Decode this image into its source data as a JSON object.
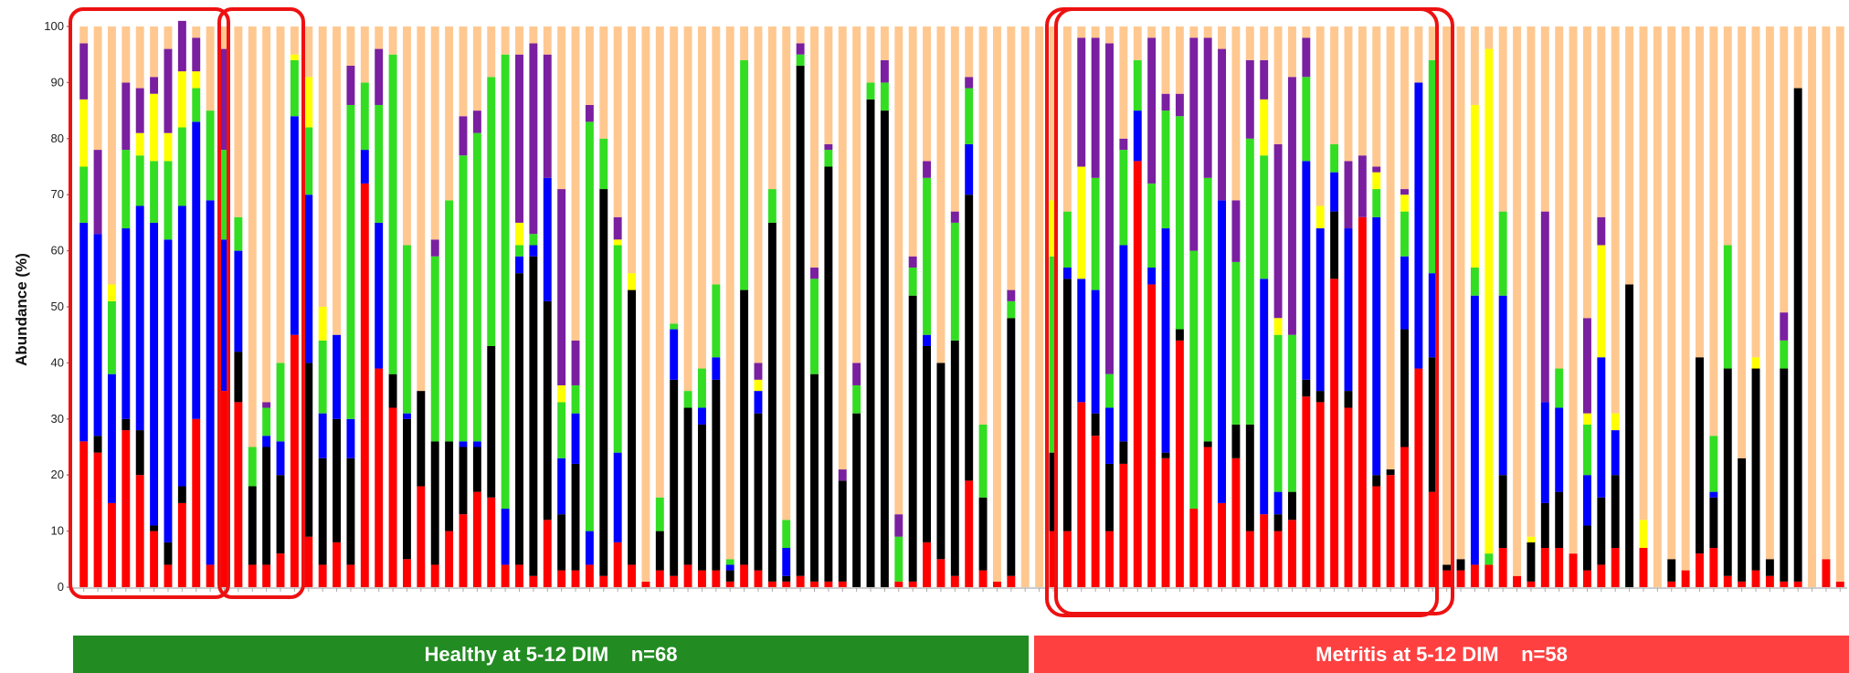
{
  "chart_data": {
    "type": "bar",
    "stacked": true,
    "ylabel": "Abundance (%)",
    "ylim": [
      0,
      100
    ],
    "yticks": [
      0,
      10,
      20,
      30,
      40,
      50,
      60,
      70,
      80,
      90,
      100
    ],
    "grid": false,
    "legend": "none",
    "series_colors": {
      "red": "#ff0000",
      "black": "#000000",
      "blue": "#0000ff",
      "green": "#33dd22",
      "yellow": "#ffff00",
      "purple": "#7a1fa0",
      "gray": "#e6e6e6",
      "other": "#ffc890"
    },
    "series_order": [
      "red",
      "black",
      "blue",
      "green",
      "yellow",
      "purple",
      "gray",
      "other"
    ],
    "groups": [
      {
        "label": "Healthy at 5-12 DIM    n=68",
        "color": "#228b22"
      },
      {
        "label": "Metritis at 5-12 DIM    n=58",
        "color": "#ff4040"
      }
    ],
    "healthy_bars": [
      [
        26,
        0,
        39,
        10,
        12,
        10,
        0
      ],
      [
        24,
        3,
        36,
        0,
        0,
        15,
        0
      ],
      [
        15,
        0,
        23,
        13,
        3,
        0,
        0
      ],
      [
        28,
        2,
        34,
        14,
        0,
        12,
        0
      ],
      [
        20,
        8,
        40,
        9,
        4,
        8,
        0
      ],
      [
        10,
        1,
        54,
        11,
        12,
        3,
        0
      ],
      [
        4,
        4,
        54,
        14,
        5,
        15,
        0
      ],
      [
        15,
        3,
        50,
        14,
        10,
        9,
        0
      ],
      [
        30,
        0,
        53,
        6,
        3,
        6,
        0
      ],
      [
        4,
        0,
        65,
        16,
        0,
        0,
        0
      ],
      [
        35,
        0,
        27,
        16,
        0,
        18,
        0
      ],
      [
        33,
        9,
        18,
        6,
        0,
        0,
        0
      ],
      [
        4,
        14,
        0,
        7,
        0,
        0,
        0
      ],
      [
        4,
        21,
        2,
        5,
        0,
        1,
        0
      ],
      [
        6,
        14,
        6,
        14,
        0,
        0,
        0
      ],
      [
        45,
        0,
        39,
        10,
        1,
        0,
        0
      ],
      [
        9,
        31,
        30,
        12,
        9,
        0,
        0
      ],
      [
        4,
        19,
        8,
        13,
        6,
        0,
        0
      ],
      [
        8,
        22,
        15,
        0,
        0,
        0,
        0
      ],
      [
        4,
        19,
        7,
        56,
        0,
        7,
        0
      ],
      [
        72,
        0,
        6,
        12,
        0,
        0,
        0
      ],
      [
        39,
        0,
        26,
        21,
        0,
        10,
        0
      ],
      [
        32,
        6,
        0,
        57,
        0,
        0,
        0
      ],
      [
        5,
        25,
        1,
        30,
        0,
        0,
        0
      ],
      [
        18,
        17,
        0,
        0,
        0,
        0,
        0
      ],
      [
        4,
        22,
        0,
        33,
        0,
        3,
        0
      ],
      [
        10,
        16,
        0,
        43,
        0,
        0,
        0
      ],
      [
        13,
        12,
        1,
        51,
        0,
        7,
        0
      ],
      [
        17,
        8,
        1,
        55,
        0,
        4,
        0
      ],
      [
        16,
        27,
        0,
        48,
        0,
        0,
        0
      ],
      [
        4,
        0,
        10,
        81,
        0,
        0,
        0
      ],
      [
        4,
        52,
        3,
        2,
        4,
        30,
        0
      ],
      [
        2,
        57,
        2,
        2,
        0,
        34,
        0
      ],
      [
        12,
        39,
        22,
        0,
        0,
        22,
        0
      ],
      [
        3,
        10,
        10,
        10,
        3,
        35,
        0
      ],
      [
        3,
        19,
        9,
        5,
        0,
        8,
        0
      ],
      [
        4,
        0,
        6,
        73,
        0,
        3,
        0
      ],
      [
        2,
        69,
        0,
        9,
        0,
        0,
        0
      ],
      [
        8,
        0,
        16,
        37,
        1,
        4,
        0
      ],
      [
        4,
        49,
        0,
        0,
        3,
        0,
        0
      ],
      [
        1,
        0,
        0,
        0,
        0,
        0,
        0
      ],
      [
        3,
        7,
        0,
        6,
        0,
        0,
        0
      ],
      [
        2,
        35,
        9,
        1,
        0,
        0,
        0
      ],
      [
        4,
        28,
        0,
        3,
        0,
        0,
        0
      ],
      [
        3,
        26,
        3,
        7,
        0,
        0,
        0
      ],
      [
        3,
        34,
        4,
        13,
        0,
        0,
        0
      ],
      [
        1,
        2,
        1,
        1,
        0,
        0,
        0
      ],
      [
        4,
        49,
        0,
        41,
        0,
        0,
        0
      ],
      [
        3,
        28,
        4,
        0,
        2,
        3,
        0
      ],
      [
        1,
        64,
        0,
        6,
        0,
        0,
        0
      ],
      [
        1,
        1,
        5,
        5,
        0,
        0,
        0
      ],
      [
        2,
        91,
        0,
        2,
        0,
        2,
        0
      ],
      [
        1,
        37,
        0,
        17,
        0,
        2,
        0
      ],
      [
        1,
        74,
        0,
        3,
        0,
        1,
        0
      ],
      [
        1,
        18,
        0,
        0,
        0,
        2,
        0
      ],
      [
        0,
        31,
        0,
        5,
        0,
        4,
        0
      ],
      [
        0,
        87,
        0,
        3,
        0,
        0,
        0
      ],
      [
        0,
        85,
        0,
        5,
        0,
        4,
        0
      ],
      [
        1,
        0,
        0,
        8,
        0,
        4,
        0
      ],
      [
        1,
        51,
        0,
        5,
        0,
        2,
        0
      ],
      [
        8,
        35,
        2,
        28,
        0,
        3,
        0
      ],
      [
        5,
        35,
        0,
        0,
        0,
        0,
        0
      ],
      [
        2,
        42,
        0,
        21,
        0,
        2,
        0
      ],
      [
        19,
        51,
        9,
        10,
        0,
        2,
        0
      ],
      [
        3,
        13,
        0,
        13,
        0,
        0,
        0
      ],
      [
        1,
        0,
        0,
        0,
        0,
        0,
        0
      ],
      [
        2,
        46,
        0,
        3,
        0,
        2,
        0
      ],
      [
        0,
        0,
        0,
        0,
        0,
        0,
        0
      ]
    ],
    "metritis_bars": [
      [
        0,
        0,
        0,
        0,
        0,
        0,
        0
      ],
      [
        10,
        14,
        0,
        35,
        10,
        0,
        0
      ],
      [
        10,
        45,
        2,
        10,
        0,
        0,
        0
      ],
      [
        33,
        0,
        22,
        0,
        20,
        23,
        0
      ],
      [
        27,
        4,
        22,
        20,
        0,
        25,
        0
      ],
      [
        10,
        12,
        10,
        6,
        0,
        59,
        0
      ],
      [
        22,
        4,
        35,
        17,
        0,
        2,
        0
      ],
      [
        76,
        0,
        9,
        9,
        0,
        0,
        0
      ],
      [
        54,
        0,
        3,
        15,
        0,
        26,
        0
      ],
      [
        23,
        1,
        40,
        21,
        0,
        3,
        0
      ],
      [
        44,
        2,
        0,
        38,
        0,
        4,
        0
      ],
      [
        14,
        0,
        0,
        46,
        0,
        38,
        0
      ],
      [
        25,
        1,
        0,
        47,
        0,
        25,
        0
      ],
      [
        15,
        0,
        54,
        0,
        0,
        27,
        0
      ],
      [
        23,
        6,
        0,
        29,
        0,
        11,
        0
      ],
      [
        10,
        19,
        0,
        51,
        0,
        14,
        0
      ],
      [
        13,
        0,
        42,
        22,
        10,
        7,
        0
      ],
      [
        10,
        3,
        4,
        28,
        3,
        31,
        0
      ],
      [
        12,
        5,
        0,
        28,
        0,
        46,
        0
      ],
      [
        34,
        3,
        39,
        15,
        0,
        7,
        0
      ],
      [
        33,
        2,
        29,
        0,
        4,
        0,
        0
      ],
      [
        55,
        12,
        7,
        5,
        0,
        0,
        0
      ],
      [
        32,
        3,
        29,
        0,
        0,
        12,
        0
      ],
      [
        66,
        0,
        0,
        0,
        0,
        11,
        0
      ],
      [
        18,
        2,
        46,
        5,
        3,
        1,
        0
      ],
      [
        20,
        1,
        0,
        0,
        0,
        0,
        0
      ],
      [
        25,
        21,
        13,
        8,
        3,
        1,
        0
      ],
      [
        39,
        0,
        51,
        0,
        0,
        0,
        0
      ],
      [
        17,
        24,
        15,
        38,
        0,
        0,
        0
      ],
      [
        3,
        1,
        0,
        0,
        0,
        0,
        0
      ],
      [
        3,
        2,
        0,
        0,
        0,
        0,
        0
      ],
      [
        4,
        0,
        48,
        5,
        29,
        0,
        0
      ],
      [
        4,
        0,
        0,
        2,
        90,
        0,
        0
      ],
      [
        7,
        13,
        32,
        15,
        0,
        0,
        0
      ],
      [
        2,
        0,
        0,
        0,
        0,
        0,
        0
      ],
      [
        1,
        7,
        0,
        0,
        1,
        0,
        0
      ],
      [
        7,
        8,
        18,
        0,
        0,
        34,
        0
      ],
      [
        7,
        10,
        15,
        7,
        0,
        0,
        0
      ],
      [
        6,
        0,
        0,
        0,
        0,
        0,
        0
      ],
      [
        3,
        8,
        9,
        9,
        2,
        17,
        0
      ],
      [
        4,
        12,
        25,
        0,
        20,
        5,
        0
      ],
      [
        7,
        13,
        8,
        0,
        3,
        0,
        0
      ],
      [
        0,
        54,
        0,
        0,
        0,
        0,
        0
      ],
      [
        7,
        0,
        0,
        0,
        5,
        0,
        0
      ],
      [
        0,
        0,
        0,
        0,
        0,
        0,
        0
      ],
      [
        1,
        4,
        0,
        0,
        0,
        0,
        0
      ],
      [
        3,
        0,
        0,
        0,
        0,
        0,
        0
      ],
      [
        6,
        35,
        0,
        0,
        0,
        0,
        0
      ],
      [
        7,
        9,
        1,
        10,
        0,
        0,
        0
      ],
      [
        2,
        37,
        0,
        22,
        0,
        0,
        0
      ],
      [
        1,
        22,
        0,
        0,
        0,
        0,
        0
      ],
      [
        3,
        36,
        0,
        0,
        2,
        0,
        0
      ],
      [
        2,
        3,
        0,
        0,
        0,
        0,
        0
      ],
      [
        1,
        38,
        0,
        5,
        0,
        5,
        0
      ],
      [
        1,
        88,
        0,
        0,
        0,
        0,
        0
      ],
      [
        0,
        0,
        0,
        0,
        0,
        0,
        0
      ],
      [
        5,
        0,
        0,
        0,
        0,
        0,
        0
      ],
      [
        1,
        0,
        0,
        0,
        0,
        0,
        0
      ]
    ]
  }
}
